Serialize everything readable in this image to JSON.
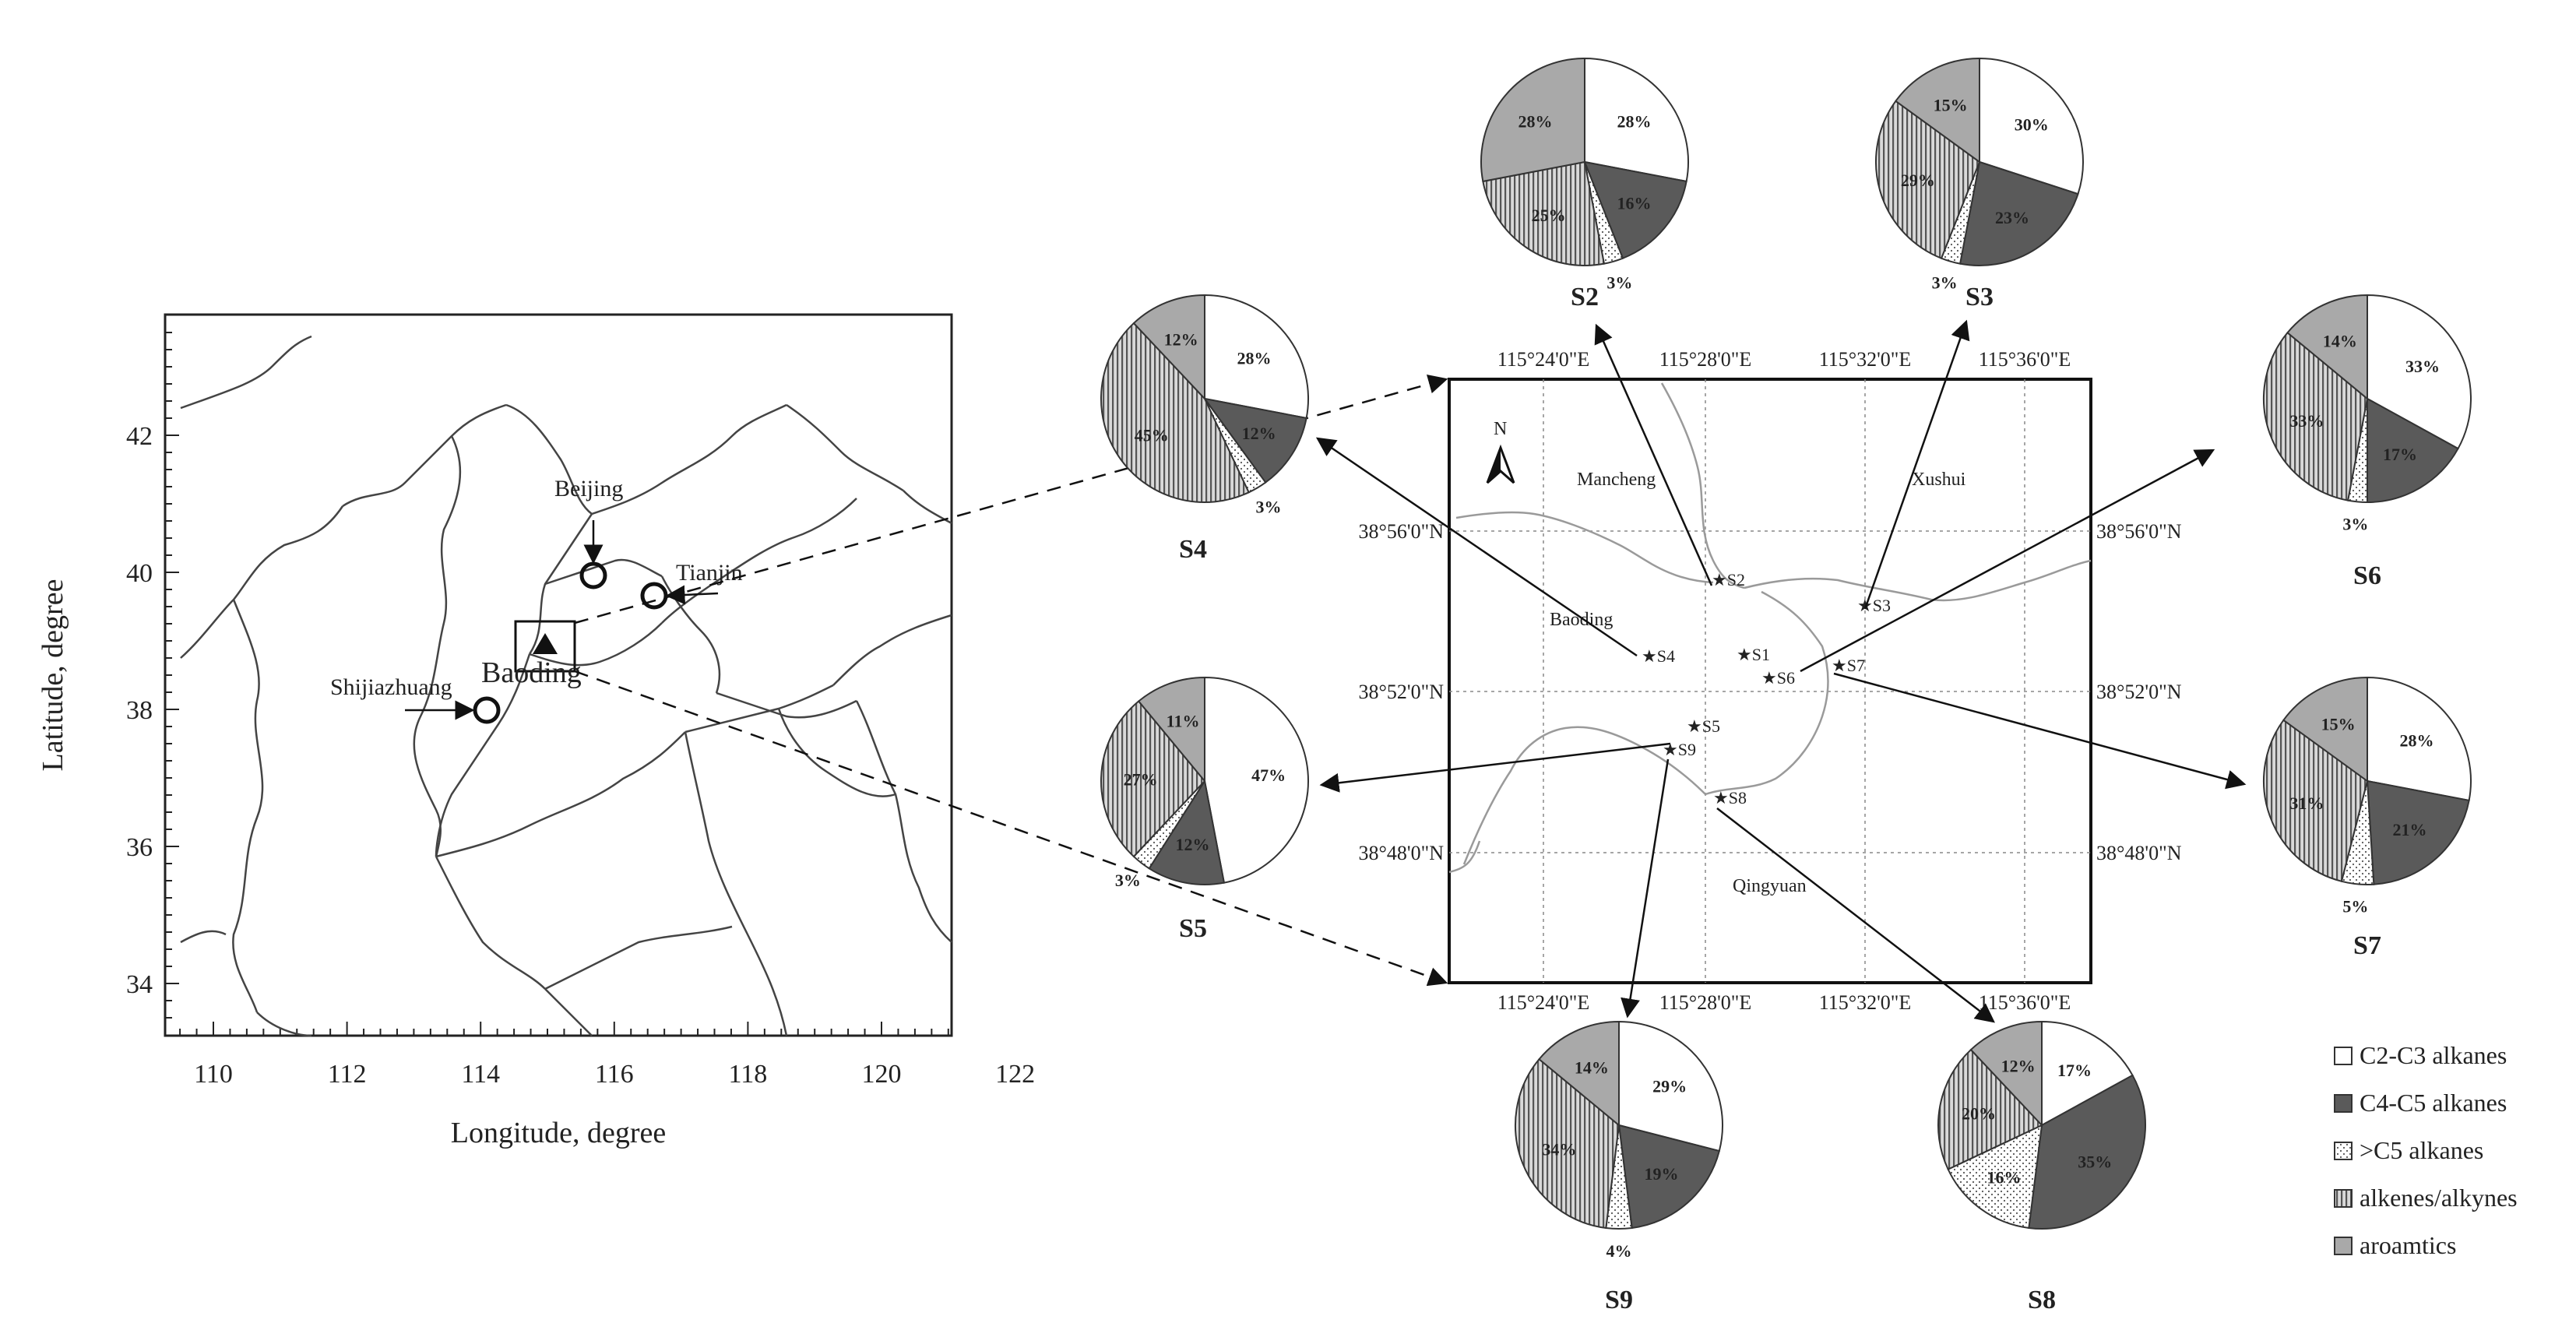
{
  "left_map": {
    "x_axis_title": "Longitude, degree",
    "y_axis_title": "Latitude, degree",
    "x_ticks": [
      "110",
      "112",
      "114",
      "116",
      "118",
      "120",
      "122"
    ],
    "y_ticks": [
      "34",
      "36",
      "38",
      "40",
      "42"
    ],
    "cities": [
      {
        "name": "Beijing",
        "lon": 116.4,
        "lat": 40.0,
        "marker": "circle"
      },
      {
        "name": "Tianjin",
        "lon": 117.3,
        "lat": 39.7,
        "marker": "circle"
      },
      {
        "name": "Shijiazhuang",
        "lon": 114.5,
        "lat": 38.05,
        "marker": "circle"
      },
      {
        "name": "Baoding",
        "lon": 115.45,
        "lat": 38.9,
        "marker": "triangle"
      }
    ]
  },
  "detail_map": {
    "top_ticks": [
      "115°24'0\"E",
      "115°28'0\"E",
      "115°32'0\"E",
      "115°36'0\"E"
    ],
    "bottom_ticks": [
      "115°24'0\"E",
      "115°28'0\"E",
      "115°32'0\"E",
      "115°36'0\"E"
    ],
    "left_ticks": [
      "38°56'0\"N",
      "38°52'0\"N",
      "38°48'0\"N"
    ],
    "right_ticks": [
      "38°56'0\"N",
      "38°52'0\"N",
      "38°48'0\"N"
    ],
    "north_label": "N",
    "towns": [
      "Mancheng",
      "Xushui",
      "Baoding",
      "Qingyuan"
    ],
    "sites": [
      "S1",
      "S2",
      "S3",
      "S4",
      "S5",
      "S6",
      "S7",
      "S8",
      "S9"
    ]
  },
  "legend": {
    "items": [
      {
        "label": "C2-C3 alkanes",
        "pattern": "white"
      },
      {
        "label": "C4-C5 alkanes",
        "pattern": "dark"
      },
      {
        "label": ">C5 alkanes",
        "pattern": "dots"
      },
      {
        "label": "alkenes/alkynes",
        "pattern": "vlines"
      },
      {
        "label": "aroamtics",
        "pattern": "gray"
      }
    ]
  },
  "chart_data": {
    "type": "pie",
    "categories": [
      "C2-C3 alkanes",
      "C4-C5 alkanes",
      ">C5 alkanes",
      "alkenes/alkynes",
      "aroamtics"
    ],
    "pies": [
      {
        "name": "S2",
        "values": [
          28,
          16,
          3,
          25,
          28
        ],
        "labels": [
          "28%",
          "16%",
          "3%",
          "25%",
          "28%"
        ]
      },
      {
        "name": "S3",
        "values": [
          30,
          23,
          3,
          29,
          15
        ],
        "labels": [
          "30%",
          "23%",
          "3%",
          "29%",
          "15%"
        ]
      },
      {
        "name": "S4",
        "values": [
          28,
          12,
          3,
          45,
          12
        ],
        "labels": [
          "28%",
          "12%",
          "3%",
          "45%",
          "12%"
        ]
      },
      {
        "name": "S5",
        "values": [
          47,
          12,
          3,
          27,
          11
        ],
        "labels": [
          "47%",
          "12%",
          "3%",
          "27%",
          "11%"
        ]
      },
      {
        "name": "S6",
        "values": [
          33,
          17,
          3,
          33,
          14
        ],
        "labels": [
          "33%",
          "17%",
          "3%",
          "33%",
          "14%"
        ]
      },
      {
        "name": "S7",
        "values": [
          28,
          21,
          5,
          31,
          15
        ],
        "labels": [
          "28%",
          "21%",
          "5%",
          "31%",
          "15%"
        ]
      },
      {
        "name": "S8",
        "values": [
          17,
          35,
          16,
          20,
          12
        ],
        "labels": [
          "17%",
          "35%",
          "16%",
          "20%",
          "12%"
        ]
      },
      {
        "name": "S9",
        "values": [
          29,
          19,
          4,
          34,
          14
        ],
        "labels": [
          "29%",
          "19%",
          "4%",
          "34%",
          "14%"
        ]
      }
    ]
  }
}
